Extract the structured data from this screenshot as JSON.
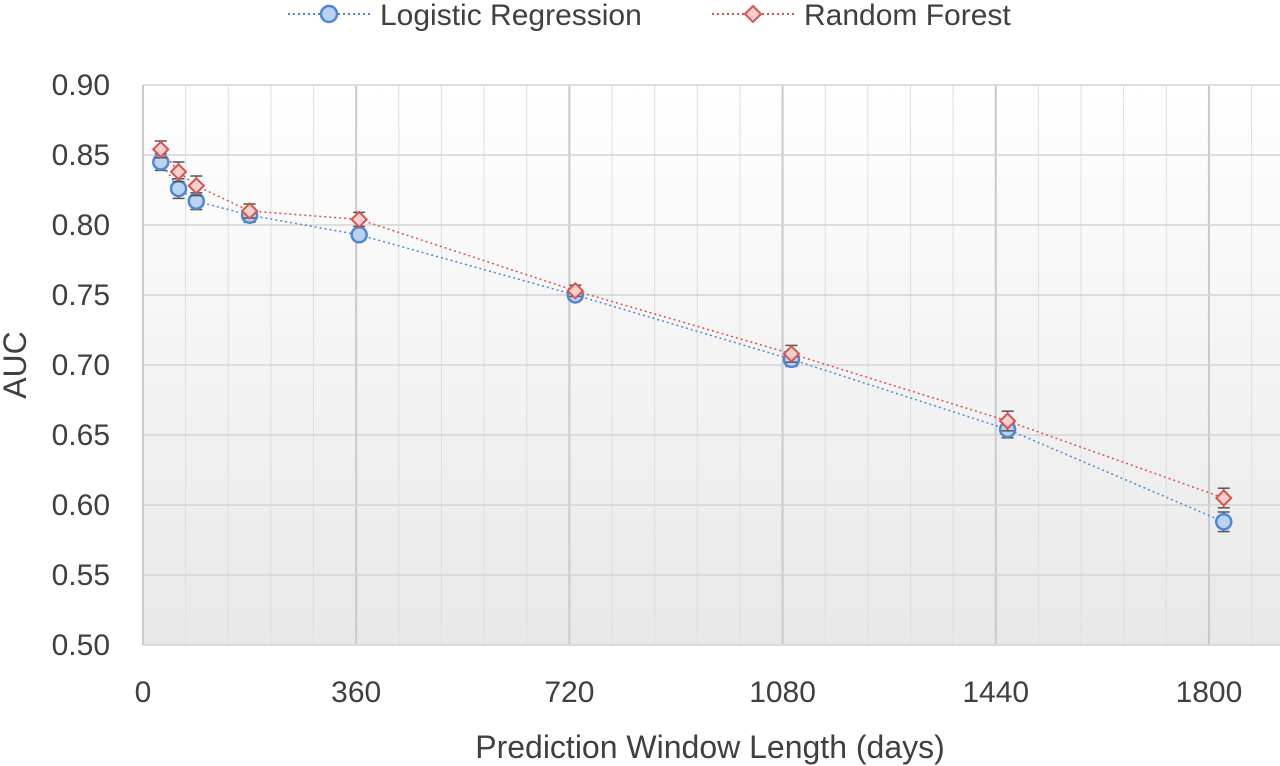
{
  "chart_data": {
    "type": "line",
    "xlabel": "Prediction Window Length (days)",
    "ylabel": "AUC",
    "xlim": [
      0,
      1920
    ],
    "ylim": [
      0.5,
      0.9
    ],
    "xticks": [
      0,
      360,
      720,
      1080,
      1440,
      1800
    ],
    "yticks": [
      "0.50",
      "0.55",
      "0.60",
      "0.65",
      "0.70",
      "0.75",
      "0.80",
      "0.85",
      "0.90"
    ],
    "grid": true,
    "legend_position": "top",
    "series": [
      {
        "name": "Logistic Regression",
        "color": "#4f86d6",
        "fill": "#bcd3f0",
        "marker": "circle",
        "x": [
          30,
          60,
          90,
          180,
          365,
          730,
          1095,
          1460,
          1825
        ],
        "y": [
          0.845,
          0.826,
          0.817,
          0.807,
          0.793,
          0.75,
          0.704,
          0.654,
          0.588
        ],
        "err": [
          0.006,
          0.007,
          0.006,
          0.005,
          0.004,
          0.004,
          0.005,
          0.006,
          0.007
        ]
      },
      {
        "name": "Random Forest",
        "color": "#d9534f",
        "fill": "#f6d0ce",
        "marker": "diamond",
        "x": [
          30,
          60,
          90,
          180,
          365,
          730,
          1095,
          1460,
          1825
        ],
        "y": [
          0.854,
          0.838,
          0.828,
          0.81,
          0.804,
          0.753,
          0.708,
          0.66,
          0.605
        ],
        "err": [
          0.006,
          0.007,
          0.007,
          0.005,
          0.005,
          0.004,
          0.006,
          0.007,
          0.007
        ]
      }
    ]
  }
}
